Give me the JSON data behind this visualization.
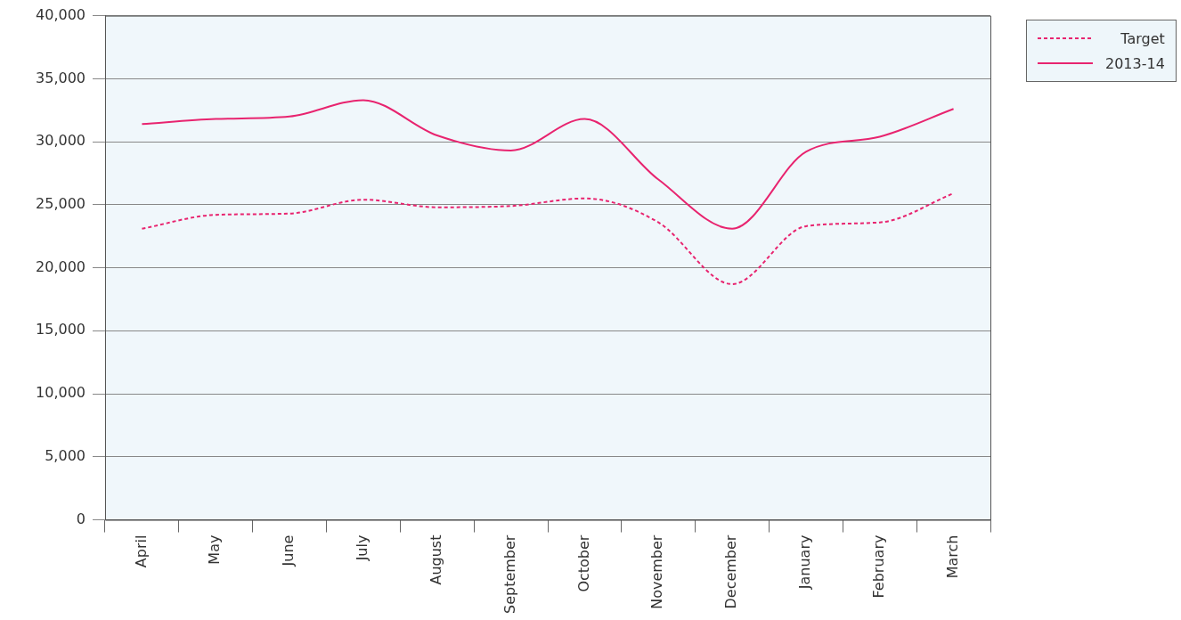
{
  "chart_data": {
    "type": "line",
    "categories": [
      "April",
      "May",
      "June",
      "July",
      "August",
      "September",
      "October",
      "November",
      "December",
      "January",
      "February",
      "March"
    ],
    "series": [
      {
        "name": "Target",
        "color": "#e8246f",
        "line_style": "dashed",
        "values": [
          23100,
          24200,
          24300,
          25400,
          24800,
          24900,
          25500,
          23600,
          18700,
          23300,
          23600,
          25900
        ]
      },
      {
        "name": "2013-14",
        "color": "#e8246f",
        "line_style": "solid",
        "values": [
          31400,
          31800,
          32000,
          33300,
          30500,
          29300,
          31800,
          27000,
          23100,
          29200,
          30400,
          32600
        ]
      }
    ],
    "ylim": [
      0,
      40000
    ],
    "yticks": [
      0,
      {
        "value": 5000,
        "label": "5,000"
      },
      {
        "value": 10000,
        "label": "10,000"
      },
      {
        "value": 15000,
        "label": "15,000"
      },
      {
        "value": 20000,
        "label": "20,000"
      },
      {
        "value": 25000,
        "label": "25,000"
      },
      {
        "value": 30000,
        "label": "30,000"
      },
      {
        "value": 35000,
        "label": "35,000"
      },
      {
        "value": 40000,
        "label": "40,000"
      }
    ],
    "grid": "y",
    "legend": "top right",
    "marker": "none"
  }
}
